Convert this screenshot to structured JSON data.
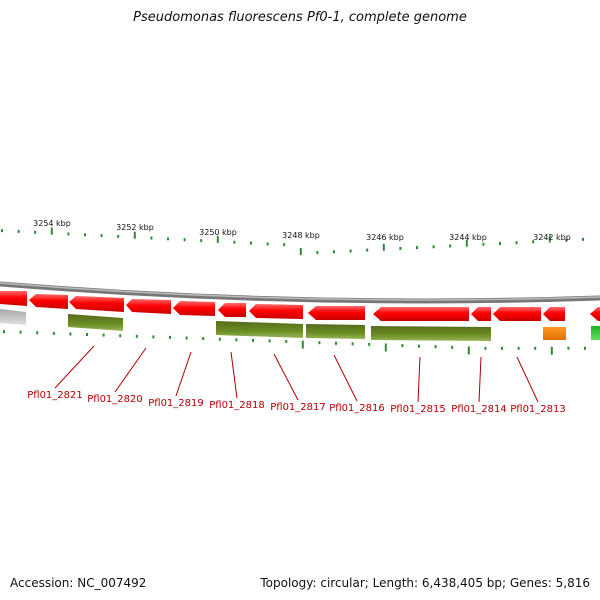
{
  "title": "Pseudomonas fluorescens Pf0-1, complete genome",
  "scale_labels": [
    "3254 kbp",
    "3252 kbp",
    "3250 kbp",
    "3248 kbp",
    "3246 kbp",
    "3244 kbp",
    "3242 kbp"
  ],
  "gene_labels": [
    "Pfl01_2821",
    "Pfl01_2820",
    "Pfl01_2819",
    "Pfl01_2818",
    "Pfl01_2817",
    "Pfl01_2816",
    "Pfl01_2815",
    "Pfl01_2814",
    "Pfl01_2813"
  ],
  "footer": {
    "accession": "Accession: NC_007492",
    "summary": "Topology: circular; Length: 6,438,405 bp; Genes: 5,816"
  },
  "colors": {
    "cds": "#ff0000",
    "rna_feature": "#6b8e23",
    "tick": "#2e8b2e",
    "label": "#b00000",
    "backbone": "#888888",
    "orange_feature": "#ff8c00",
    "green_feature": "#22c022",
    "grey_feature": "#c0c0c0"
  }
}
